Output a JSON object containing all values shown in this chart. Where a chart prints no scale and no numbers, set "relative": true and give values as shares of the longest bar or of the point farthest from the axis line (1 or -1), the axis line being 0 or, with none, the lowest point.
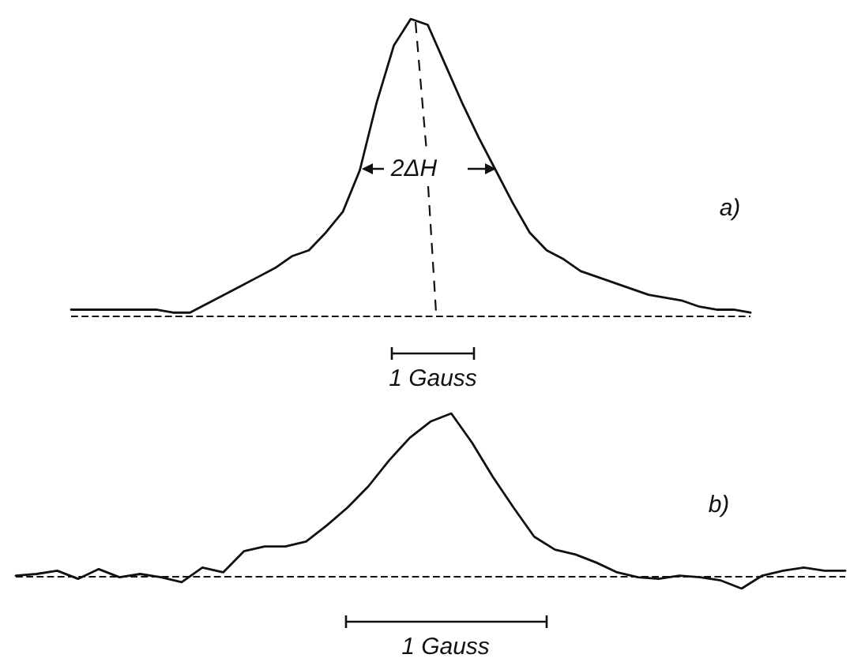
{
  "chart_data": [
    {
      "type": "line",
      "relative": true,
      "marker": "none",
      "categories": [
        null,
        null,
        null,
        null,
        null,
        null,
        null,
        null,
        null,
        null,
        null,
        null,
        null,
        null,
        null,
        null,
        null,
        null,
        null,
        null,
        null,
        null,
        null,
        null,
        null,
        null,
        null,
        null,
        null,
        null,
        null,
        null,
        null,
        null,
        null,
        null,
        null,
        null,
        null,
        null,
        null
      ],
      "series": [
        {
          "color": "#111111",
          "values": [
            0.02,
            0.02,
            0.02,
            0.02,
            0.02,
            0.02,
            0.01,
            0.01,
            0.04,
            0.07,
            0.1,
            0.13,
            0.16,
            0.2,
            0.22,
            0.28,
            0.35,
            0.49,
            0.72,
            0.91,
            1.0,
            0.98,
            0.85,
            0.72,
            0.6,
            0.49,
            0.38,
            0.28,
            0.22,
            0.19,
            0.15,
            0.13,
            0.11,
            0.09,
            0.07,
            0.06,
            0.05,
            0.03,
            0.02,
            0.02,
            0.01
          ]
        }
      ],
      "ref_lines": [
        {
          "axis": "y",
          "value": 0,
          "line_style": "dashed",
          "color": "#111111"
        }
      ],
      "annotations": [
        "2ΔH",
        "a)",
        "1 Gauss"
      ]
    },
    {
      "type": "line",
      "relative": true,
      "marker": "none",
      "categories": [
        null,
        null,
        null,
        null,
        null,
        null,
        null,
        null,
        null,
        null,
        null,
        null,
        null,
        null,
        null,
        null,
        null,
        null,
        null,
        null,
        null,
        null,
        null,
        null,
        null,
        null,
        null,
        null,
        null,
        null,
        null,
        null,
        null,
        null,
        null,
        null,
        null,
        null,
        null,
        null,
        null
      ],
      "series": [
        {
          "color": "#111111",
          "values": [
            0,
            0.01,
            0.03,
            -0.02,
            0.04,
            -0.01,
            0.01,
            -0.01,
            -0.04,
            0.05,
            0.02,
            0.15,
            0.18,
            0.18,
            0.21,
            0.31,
            0.42,
            0.55,
            0.71,
            0.85,
            0.95,
            1.0,
            0.82,
            0.61,
            0.42,
            0.24,
            0.16,
            0.13,
            0.08,
            0.02,
            -0.01,
            -0.02,
            0,
            -0.01,
            -0.03,
            -0.08,
            0,
            0.03,
            0.05,
            0.03,
            0.03
          ]
        }
      ],
      "ref_lines": [
        {
          "axis": "y",
          "value": 0,
          "line_style": "dashed",
          "color": "#111111"
        }
      ],
      "annotations": [
        "b)",
        "1 Gauss"
      ]
    }
  ]
}
